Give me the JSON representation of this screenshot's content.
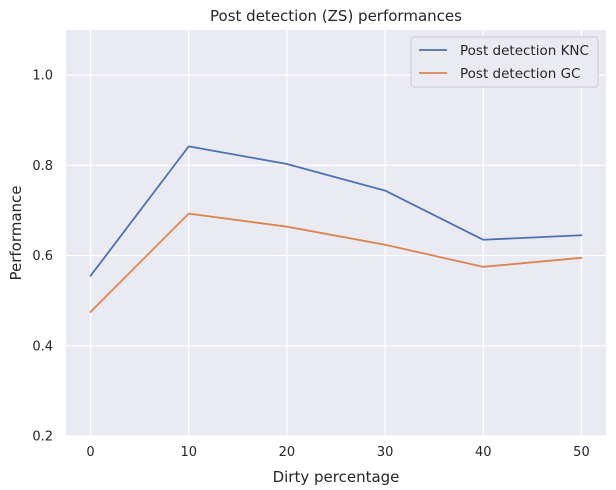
{
  "chart_data": {
    "type": "line",
    "title": "Post detection (ZS) performances",
    "xlabel": "Dirty percentage",
    "ylabel": "Performance",
    "x": [
      0,
      10,
      20,
      30,
      40,
      50
    ],
    "xlim": [
      -2.5,
      52.5
    ],
    "ylim": [
      0.2,
      1.1
    ],
    "xticks": [
      0,
      10,
      20,
      30,
      40,
      50
    ],
    "yticks": [
      0.2,
      0.4,
      0.6,
      0.8,
      1.0
    ],
    "xtick_labels": [
      "0",
      "10",
      "20",
      "30",
      "40",
      "50"
    ],
    "ytick_labels": [
      "0.2",
      "0.4",
      "0.6",
      "0.8",
      "1.0"
    ],
    "grid": true,
    "legend_position": "top-right",
    "series": [
      {
        "name": "Post detection KNC",
        "color": "#4c72b0",
        "values": [
          0.555,
          0.842,
          0.803,
          0.744,
          0.635,
          0.645
        ]
      },
      {
        "name": "Post detection GC",
        "color": "#dd8452",
        "values": [
          0.475,
          0.693,
          0.664,
          0.624,
          0.575,
          0.595
        ]
      }
    ]
  },
  "colors": {
    "plot_background": "#eaeaf2",
    "grid": "#ffffff"
  }
}
